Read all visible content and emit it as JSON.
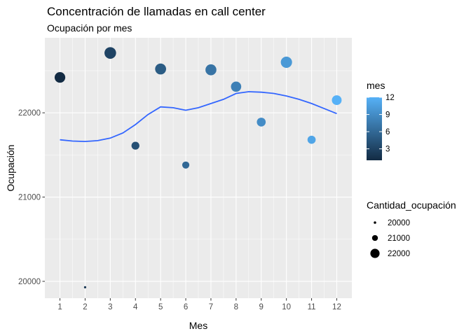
{
  "chart_data": {
    "type": "scatter",
    "title": "Concentración de llamadas en call center",
    "subtitle": "Ocupación por mes",
    "xlabel": "Mes",
    "ylabel": "Ocupación",
    "xlim": [
      0.4,
      12.6
    ],
    "ylim": [
      19800,
      22890
    ],
    "x_ticks": [
      1,
      2,
      3,
      4,
      5,
      6,
      7,
      8,
      9,
      10,
      11,
      12
    ],
    "y_ticks": [
      20000,
      21000,
      22000
    ],
    "y_tick_labels": [
      "20000",
      "21000",
      "22000"
    ],
    "grid": true,
    "points": [
      {
        "mes": 1,
        "ocupacion": 22420
      },
      {
        "mes": 2,
        "ocupacion": 19930
      },
      {
        "mes": 3,
        "ocupacion": 22710
      },
      {
        "mes": 4,
        "ocupacion": 21610
      },
      {
        "mes": 5,
        "ocupacion": 22520
      },
      {
        "mes": 6,
        "ocupacion": 21380
      },
      {
        "mes": 7,
        "ocupacion": 22510
      },
      {
        "mes": 8,
        "ocupacion": 22310
      },
      {
        "mes": 9,
        "ocupacion": 21890
      },
      {
        "mes": 10,
        "ocupacion": 22600
      },
      {
        "mes": 11,
        "ocupacion": 21680
      },
      {
        "mes": 12,
        "ocupacion": 22150
      }
    ],
    "smooth_line": {
      "color": "#3366FF",
      "x": [
        1,
        1.5,
        2,
        2.5,
        3,
        3.5,
        4,
        4.5,
        5,
        5.5,
        6,
        6.5,
        7,
        7.5,
        8,
        8.5,
        9,
        9.5,
        10,
        10.5,
        11,
        11.5,
        12
      ],
      "y": [
        21680,
        21665,
        21660,
        21670,
        21700,
        21760,
        21860,
        21980,
        22070,
        22060,
        22030,
        22060,
        22110,
        22160,
        22230,
        22250,
        22245,
        22230,
        22200,
        22160,
        22110,
        22050,
        21990
      ]
    },
    "color_legend": {
      "title": "mes",
      "min": 1,
      "max": 12,
      "breaks": [
        3,
        6,
        9,
        12
      ],
      "break_labels": [
        "3",
        "6",
        "9",
        "12"
      ],
      "low_color": "#132B43",
      "high_color": "#56B1F7",
      "position": "right"
    },
    "size_legend": {
      "title": "Cantidad_ocupación",
      "breaks": [
        20000,
        21000,
        22000
      ],
      "break_labels": [
        "20000",
        "21000",
        "22000"
      ],
      "position": "right"
    },
    "colors": {
      "panel": "#EBEBEB",
      "grid": "#FFFFFF",
      "tick_text": "#4D4D4D"
    }
  }
}
